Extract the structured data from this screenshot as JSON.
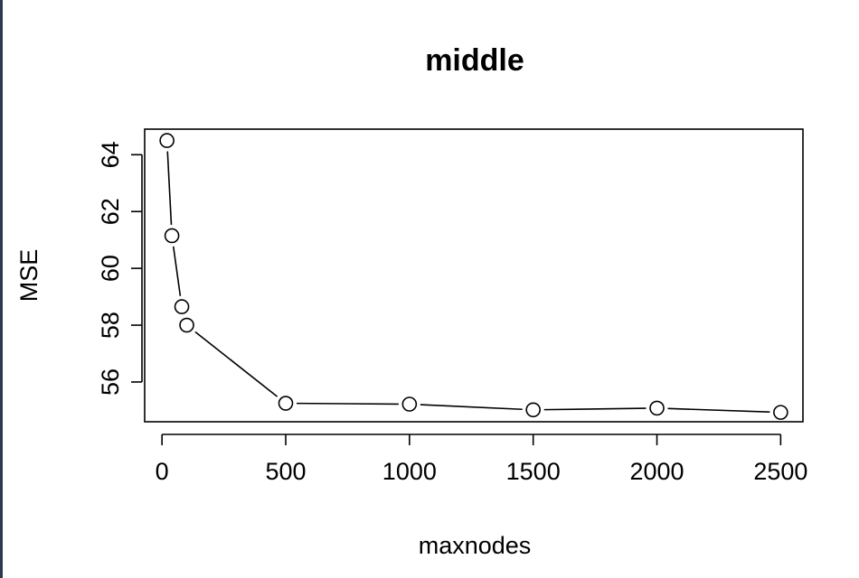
{
  "chart_data": {
    "type": "line",
    "title": "middle",
    "xlabel": "maxnodes",
    "ylabel": "MSE",
    "x": [
      20,
      40,
      80,
      100,
      500,
      1000,
      1500,
      2000,
      2500
    ],
    "series": [
      {
        "values": [
          64.5,
          61.15,
          58.65,
          58.0,
          55.25,
          55.22,
          55.02,
          55.08,
          54.93
        ]
      }
    ],
    "xticks": [
      0,
      500,
      1000,
      1500,
      2000,
      2500
    ],
    "yticks": [
      56,
      58,
      60,
      62,
      64
    ],
    "xlim": [
      -70,
      2590
    ],
    "ylim": [
      54.6,
      64.9
    ],
    "marker": "open-circle",
    "grid": false,
    "legend": "none"
  }
}
